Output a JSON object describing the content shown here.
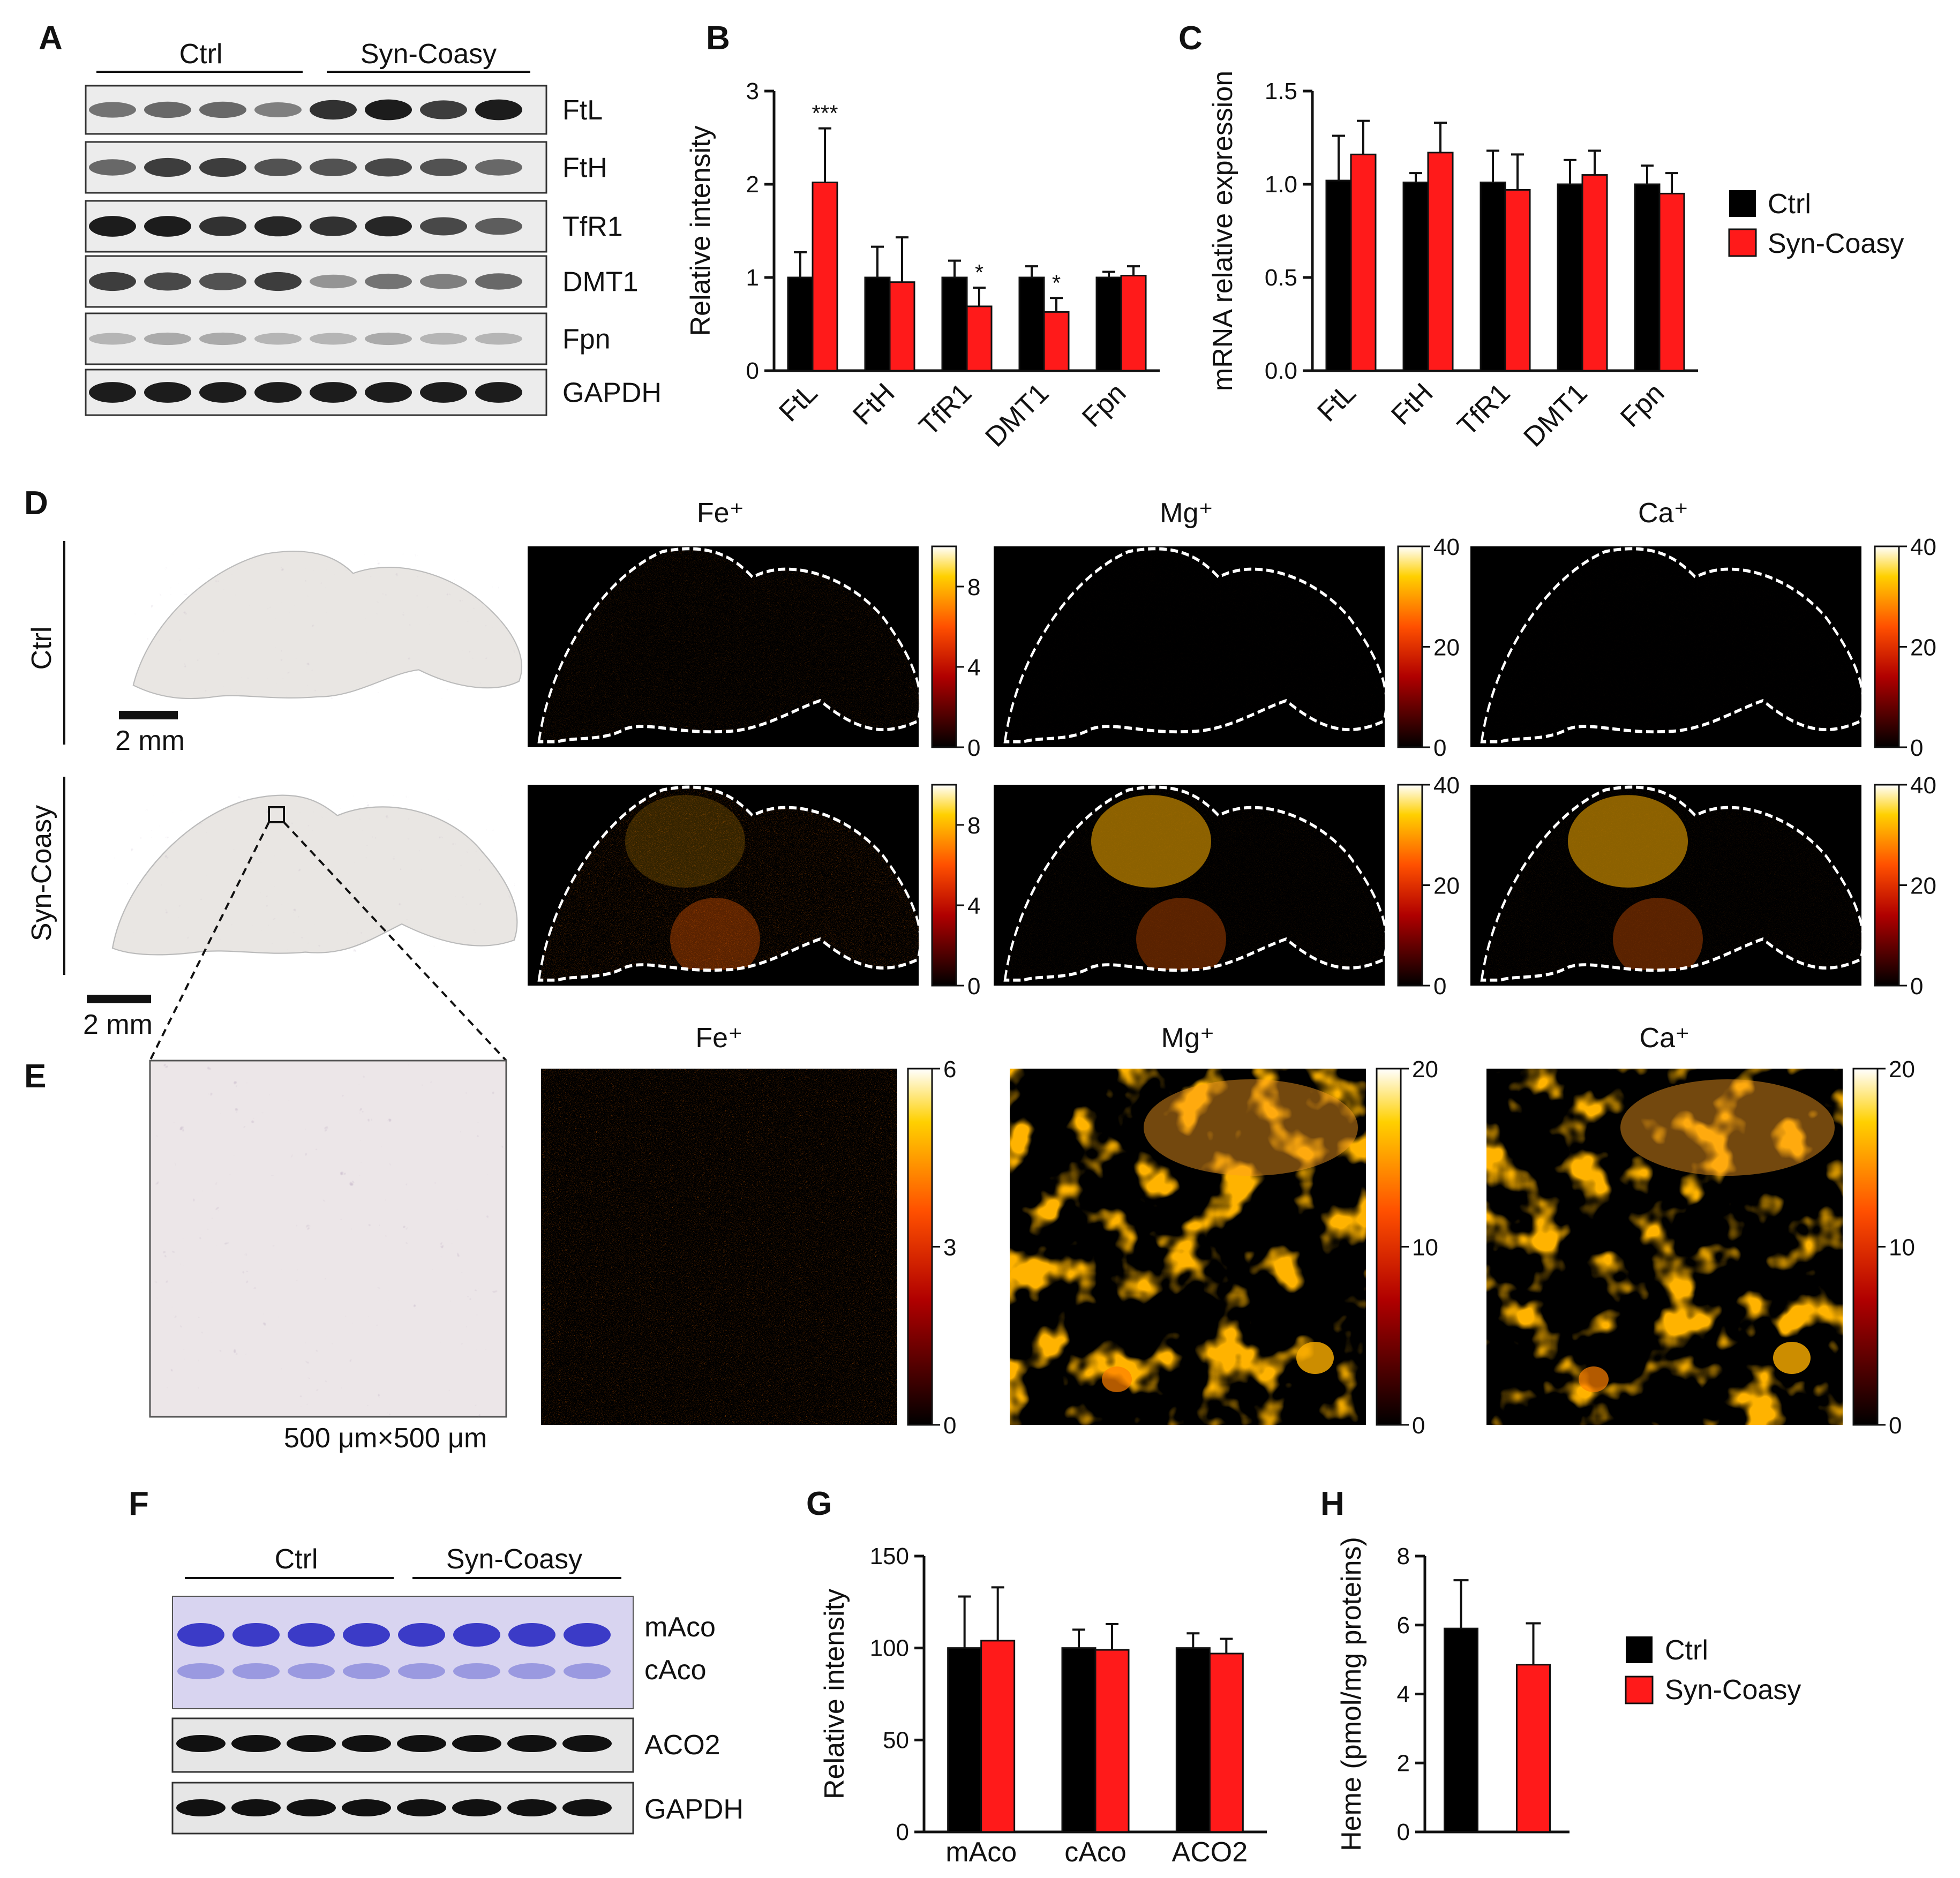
{
  "panels": {
    "a": "A",
    "b": "B",
    "c": "C",
    "d": "D",
    "e": "E",
    "f": "F",
    "g": "G",
    "h": "H"
  },
  "groups": {
    "ctrl": "Ctrl",
    "syn": "Syn-Coasy"
  },
  "blot_a": {
    "bands": [
      "FtL",
      "FtH",
      "TfR1",
      "DMT1",
      "Fpn",
      "GAPDH"
    ]
  },
  "blot_f": {
    "bands": [
      "mAco",
      "cAco",
      "ACO2",
      "GAPDH"
    ]
  },
  "legend": {
    "ctrl": "Ctrl",
    "syn": "Syn-Coasy"
  },
  "colors": {
    "ctrl": "#000000",
    "syn": "#ff1a1a"
  },
  "imaging": {
    "elements": [
      "Fe⁺",
      "Mg⁺",
      "Ca⁺"
    ],
    "scalebar": "2 mm",
    "zoom_size": "500 μm×500 μm",
    "colorbar_d": {
      "fe": [
        "0",
        "4",
        "8"
      ],
      "mg": [
        "0",
        "20",
        "40"
      ],
      "ca": [
        "0",
        "20",
        "40"
      ]
    },
    "colorbar_e": {
      "fe": [
        "0",
        "3",
        "6"
      ],
      "mg": [
        "0",
        "10",
        "20"
      ],
      "ca": [
        "0",
        "10",
        "20"
      ]
    }
  },
  "chart_data": [
    {
      "panel": "B",
      "type": "bar",
      "categories": [
        "FtL",
        "FtH",
        "TfR1",
        "DMT1",
        "Fpn"
      ],
      "ylabel": "Relative intensity",
      "ylim": [
        0,
        3
      ],
      "yticks": [
        "0",
        "1",
        "2",
        "3"
      ],
      "series": [
        {
          "name": "Ctrl",
          "values": [
            1.0,
            1.0,
            1.0,
            1.0,
            1.0
          ],
          "errors": [
            0.27,
            0.33,
            0.18,
            0.12,
            0.06
          ]
        },
        {
          "name": "Syn-Coasy",
          "values": [
            2.02,
            0.95,
            0.69,
            0.63,
            1.02
          ],
          "errors": [
            0.58,
            0.48,
            0.2,
            0.15,
            0.1
          ]
        }
      ],
      "annotations": [
        "***",
        "",
        "*",
        "*",
        ""
      ]
    },
    {
      "panel": "C",
      "type": "bar",
      "categories": [
        "FtL",
        "FtH",
        "TfR1",
        "DMT1",
        "Fpn"
      ],
      "ylabel": "mRNA relative expression",
      "ylim": [
        0,
        1.5
      ],
      "yticks": [
        "0.0",
        "0.5",
        "1.0",
        "1.5"
      ],
      "series": [
        {
          "name": "Ctrl",
          "values": [
            1.02,
            1.01,
            1.01,
            1.0,
            1.0
          ],
          "errors": [
            0.24,
            0.05,
            0.17,
            0.13,
            0.1
          ]
        },
        {
          "name": "Syn-Coasy",
          "values": [
            1.16,
            1.17,
            0.97,
            1.05,
            0.95
          ],
          "errors": [
            0.18,
            0.16,
            0.19,
            0.13,
            0.11
          ]
        }
      ]
    },
    {
      "panel": "G",
      "type": "bar",
      "categories": [
        "mAco",
        "cAco",
        "ACO2"
      ],
      "ylabel": "Relative intensity",
      "ylim": [
        0,
        150
      ],
      "yticks": [
        "0",
        "50",
        "100",
        "150"
      ],
      "series": [
        {
          "name": "Ctrl",
          "values": [
            100,
            100,
            100
          ],
          "errors": [
            28,
            10,
            8
          ]
        },
        {
          "name": "Syn-Coasy",
          "values": [
            104,
            99,
            97
          ],
          "errors": [
            29,
            14,
            8
          ]
        }
      ]
    },
    {
      "panel": "H",
      "type": "bar",
      "categories": [
        "Ctrl",
        "Syn-Coasy"
      ],
      "ylabel": "Heme (pmol/mg proteins)",
      "ylim": [
        0,
        8
      ],
      "yticks": [
        "0",
        "2",
        "4",
        "6",
        "8"
      ],
      "values": [
        5.9,
        4.85
      ],
      "errors": [
        1.4,
        1.2
      ]
    }
  ]
}
